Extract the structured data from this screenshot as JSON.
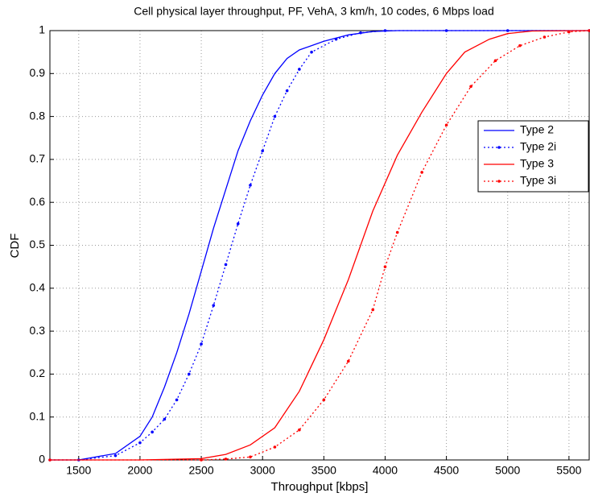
{
  "chart_data": {
    "type": "line",
    "title": "Cell physical layer throughput, PF, VehA, 3 km/h, 10 codes, 6 Mbps load",
    "x_label": "Throughput [kbps]",
    "y_label": "CDF",
    "xlim": [
      1265,
      5665
    ],
    "ylim": [
      0,
      1
    ],
    "xticks": [
      1500,
      2000,
      2500,
      3000,
      3500,
      4000,
      4500,
      5000,
      5500
    ],
    "yticks": [
      0,
      0.1,
      0.2,
      0.3,
      0.4,
      0.5,
      0.6,
      0.7,
      0.8,
      0.9,
      1
    ],
    "grid": true,
    "legend_position": "right",
    "series": [
      {
        "name": "Type 2",
        "color": "#0000ff",
        "style": "solid",
        "markers": false,
        "x": [
          1265,
          1500,
          1800,
          2000,
          2100,
          2200,
          2300,
          2400,
          2500,
          2600,
          2700,
          2800,
          2900,
          3000,
          3100,
          3200,
          3300,
          3500,
          3700,
          3900,
          4100,
          5665
        ],
        "values": [
          0,
          0,
          0.015,
          0.055,
          0.1,
          0.17,
          0.25,
          0.34,
          0.44,
          0.54,
          0.63,
          0.72,
          0.79,
          0.85,
          0.9,
          0.935,
          0.955,
          0.975,
          0.99,
          0.998,
          1,
          1
        ]
      },
      {
        "name": "Type 2i",
        "color": "#0000ff",
        "style": "dotted",
        "markers": true,
        "x": [
          1265,
          1500,
          1800,
          2000,
          2100,
          2200,
          2300,
          2400,
          2500,
          2600,
          2700,
          2800,
          2900,
          3000,
          3100,
          3200,
          3300,
          3400,
          3600,
          3800,
          4000,
          4500,
          5000,
          5665
        ],
        "values": [
          0,
          0,
          0.01,
          0.04,
          0.065,
          0.095,
          0.14,
          0.2,
          0.27,
          0.36,
          0.455,
          0.55,
          0.64,
          0.72,
          0.8,
          0.86,
          0.91,
          0.95,
          0.98,
          0.995,
          1,
          1,
          1,
          1
        ]
      },
      {
        "name": "Type 3",
        "color": "#ff0000",
        "style": "solid",
        "markers": false,
        "x": [
          1265,
          2000,
          2500,
          2700,
          2900,
          3100,
          3300,
          3500,
          3700,
          3900,
          4100,
          4300,
          4500,
          4650,
          4850,
          5000,
          5200,
          5665
        ],
        "values": [
          0,
          0,
          0.003,
          0.013,
          0.035,
          0.075,
          0.16,
          0.28,
          0.42,
          0.58,
          0.71,
          0.81,
          0.9,
          0.95,
          0.98,
          0.993,
          0.999,
          1
        ]
      },
      {
        "name": "Type 3i",
        "color": "#ff0000",
        "style": "dotted",
        "markers": true,
        "x": [
          1265,
          2500,
          2700,
          2900,
          3100,
          3300,
          3500,
          3700,
          3900,
          4000,
          4100,
          4300,
          4500,
          4700,
          4900,
          5100,
          5300,
          5500,
          5665
        ],
        "values": [
          0,
          0,
          0.002,
          0.007,
          0.03,
          0.07,
          0.14,
          0.23,
          0.35,
          0.45,
          0.53,
          0.67,
          0.78,
          0.87,
          0.93,
          0.965,
          0.985,
          0.997,
          1
        ]
      }
    ]
  }
}
